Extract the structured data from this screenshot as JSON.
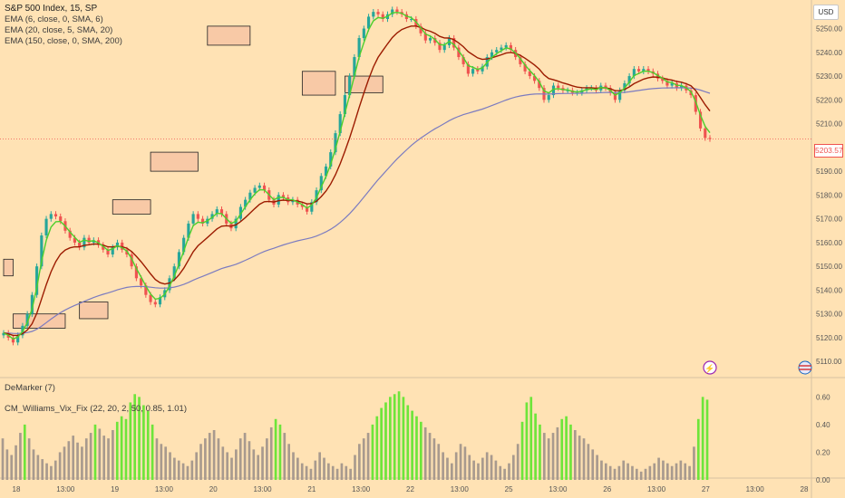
{
  "chart_data": {
    "type": "candlestick",
    "legend": {
      "title": "S&P 500 Index, 15, SP",
      "studies": [
        "EMA (6, close, 0, SMA, 6)",
        "EMA (20, close, 5, SMA, 20)",
        "EMA (150, close, 0, SMA, 200)"
      ]
    },
    "currency": "USD",
    "last_price": "5203.57",
    "y_axis": {
      "ticks": [
        "5250.00",
        "5240.00",
        "5230.00",
        "5220.00",
        "5210.00",
        "5200.00",
        "5190.00",
        "5180.00",
        "5170.00",
        "5160.00",
        "5150.00",
        "5140.00",
        "5130.00",
        "5120.00",
        "5110.00"
      ],
      "range": [
        5104,
        5262
      ]
    },
    "x_axis": {
      "ticks": [
        "18",
        "13:00",
        "19",
        "13:00",
        "20",
        "13:00",
        "21",
        "13:00",
        "22",
        "13:00",
        "25",
        "13:00",
        "26",
        "13:00",
        "27",
        "13:00",
        "28"
      ]
    },
    "close_series": [
      5122,
      5120,
      5118,
      5121,
      5125,
      5130,
      5138,
      5150,
      5163,
      5170,
      5172,
      5171,
      5169,
      5165,
      5162,
      5160,
      5158,
      5162,
      5160,
      5161,
      5159,
      5157,
      5155,
      5158,
      5160,
      5157,
      5155,
      5150,
      5145,
      5142,
      5138,
      5135,
      5134,
      5137,
      5140,
      5145,
      5150,
      5156,
      5162,
      5168,
      5172,
      5170,
      5168,
      5170,
      5172,
      5174,
      5172,
      5168,
      5166,
      5170,
      5175,
      5178,
      5181,
      5183,
      5184,
      5182,
      5178,
      5176,
      5180,
      5179,
      5177,
      5178,
      5176,
      5175,
      5173,
      5177,
      5182,
      5188,
      5192,
      5198,
      5206,
      5214,
      5222,
      5230,
      5238,
      5246,
      5250,
      5255,
      5257,
      5256,
      5254,
      5256,
      5258,
      5257,
      5256,
      5254,
      5254,
      5251,
      5248,
      5245,
      5246,
      5244,
      5241,
      5243,
      5246,
      5242,
      5238,
      5235,
      5231,
      5233,
      5232,
      5234,
      5238,
      5240,
      5241,
      5242,
      5243,
      5241,
      5238,
      5235,
      5232,
      5230,
      5228,
      5225,
      5220,
      5222,
      5226,
      5225,
      5224,
      5224,
      5223,
      5223,
      5224,
      5225,
      5225,
      5224,
      5226,
      5225,
      5223,
      5220,
      5224,
      5227,
      5230,
      5233,
      5232,
      5233,
      5232,
      5231,
      5229,
      5228,
      5226,
      5227,
      5225,
      5226,
      5224,
      5222,
      5215,
      5208,
      5204,
      5203.57
    ],
    "zones": [
      {
        "from": 0,
        "to": 2,
        "top": 5153,
        "bottom": 5146
      },
      {
        "from": 2,
        "to": 13,
        "top": 5130,
        "bottom": 5124
      },
      {
        "from": 16,
        "to": 22,
        "top": 5135,
        "bottom": 5128
      },
      {
        "from": 23,
        "to": 31,
        "top": 5178,
        "bottom": 5172
      },
      {
        "from": 31,
        "to": 41,
        "top": 5198,
        "bottom": 5190
      },
      {
        "from": 43,
        "to": 52,
        "top": 5251,
        "bottom": 5243
      },
      {
        "from": 63,
        "to": 70,
        "top": 5232,
        "bottom": 5222
      },
      {
        "from": 72,
        "to": 80,
        "top": 5230,
        "bottom": 5223
      }
    ]
  },
  "sub_chart": {
    "labels": [
      "DeMarker (7)",
      "CM_Williams_Vix_Fix (22, 20, 2, 50, 0.85, 1.01)"
    ],
    "y_ticks": [
      "0.60",
      "0.40",
      "0.20",
      "0.00"
    ],
    "range": [
      0,
      0.72
    ],
    "values": [
      0.3,
      0.22,
      0.18,
      0.25,
      0.34,
      0.4,
      0.3,
      0.22,
      0.18,
      0.15,
      0.12,
      0.1,
      0.14,
      0.2,
      0.24,
      0.28,
      0.32,
      0.27,
      0.24,
      0.3,
      0.34,
      0.4,
      0.37,
      0.32,
      0.3,
      0.36,
      0.42,
      0.46,
      0.44,
      0.56,
      0.62,
      0.6,
      0.54,
      0.5,
      0.4,
      0.3,
      0.26,
      0.24,
      0.2,
      0.16,
      0.14,
      0.12,
      0.1,
      0.14,
      0.2,
      0.26,
      0.3,
      0.34,
      0.36,
      0.3,
      0.24,
      0.2,
      0.16,
      0.22,
      0.3,
      0.34,
      0.28,
      0.22,
      0.18,
      0.24,
      0.3,
      0.38,
      0.44,
      0.4,
      0.34,
      0.26,
      0.2,
      0.16,
      0.12,
      0.1,
      0.08,
      0.14,
      0.2,
      0.16,
      0.12,
      0.1,
      0.08,
      0.12,
      0.1,
      0.08,
      0.18,
      0.26,
      0.3,
      0.34,
      0.4,
      0.46,
      0.52,
      0.56,
      0.6,
      0.62,
      0.64,
      0.6,
      0.54,
      0.5,
      0.46,
      0.42,
      0.38,
      0.34,
      0.3,
      0.26,
      0.2,
      0.16,
      0.12,
      0.2,
      0.26,
      0.24,
      0.18,
      0.14,
      0.12,
      0.16,
      0.2,
      0.18,
      0.14,
      0.1,
      0.08,
      0.12,
      0.18,
      0.26,
      0.42,
      0.56,
      0.6,
      0.48,
      0.4,
      0.34,
      0.3,
      0.34,
      0.38,
      0.44,
      0.46,
      0.4,
      0.36,
      0.32,
      0.3,
      0.26,
      0.22,
      0.18,
      0.14,
      0.12,
      0.1,
      0.08,
      0.1,
      0.14,
      0.12,
      0.1,
      0.08,
      0.06,
      0.08,
      0.1,
      0.12,
      0.16,
      0.14,
      0.12,
      0.1,
      0.12,
      0.14,
      0.12,
      0.1,
      0.24,
      0.44,
      0.6,
      0.58
    ],
    "green_threshold": 0.4
  }
}
